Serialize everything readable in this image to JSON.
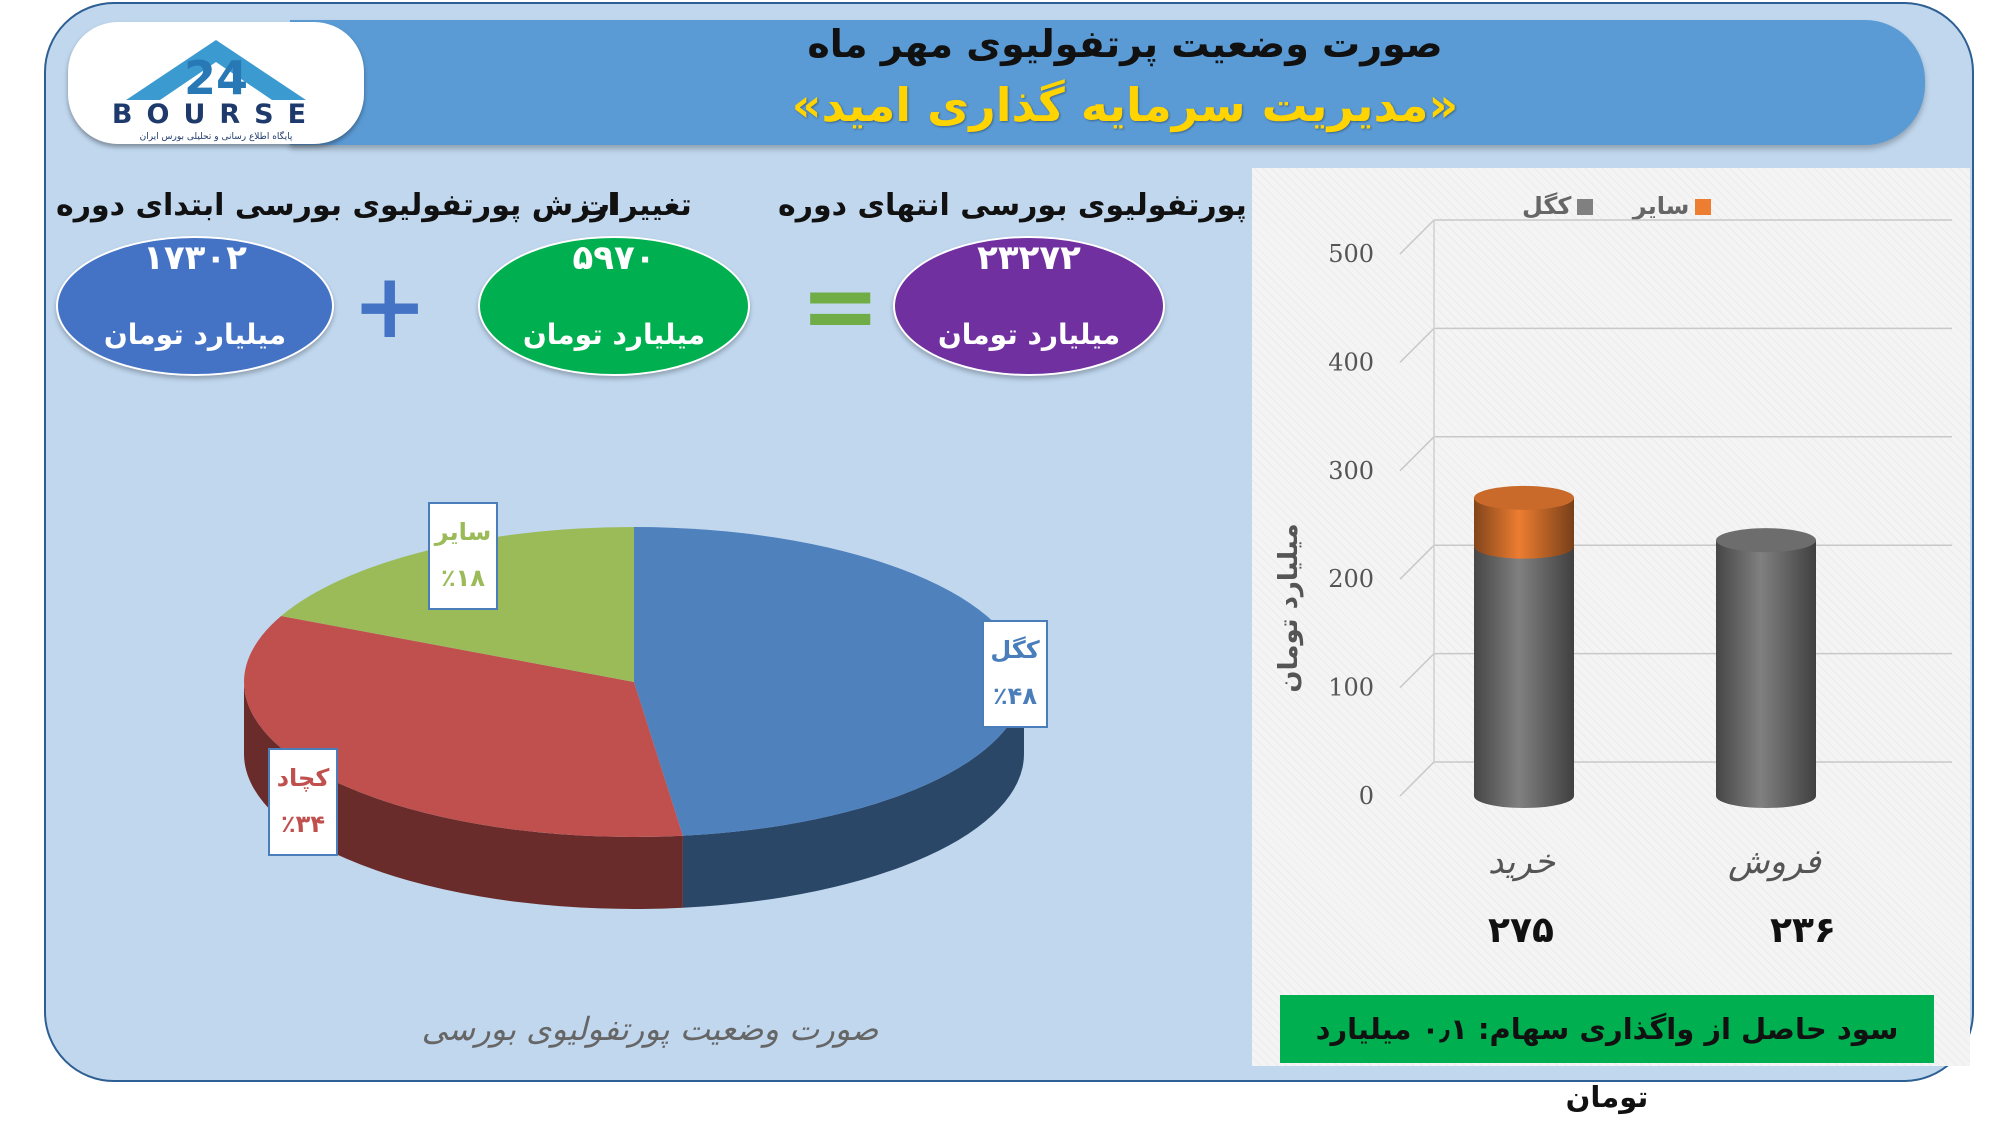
{
  "header": {
    "title_line1": "صورت وضعیت پرتفولیوی مهر ماه",
    "title_line2": "«مدیریت سرمایه گذاری امید»"
  },
  "logo": {
    "wordmark": "BOURSE",
    "caption": "پایگاه اطلاع رسانی و تحلیلی بورس ایران"
  },
  "summary": {
    "start": {
      "label": "ارزش پورتفولیوی بورسی ابتدای دوره",
      "value": "۱۷۳۰۲",
      "unit": "میلیارد تومان",
      "color": "#4472c4"
    },
    "change": {
      "label": "تغییرات",
      "value": "۵۹۷۰",
      "unit": "میلیارد تومان",
      "color": "#00b050"
    },
    "end": {
      "label": "ارزش پورتفولیوی بورسی انتهای دوره",
      "value": "۲۳۲۷۲",
      "unit": "میلیارد تومان",
      "color": "#7030a0"
    },
    "plus_symbol": "+",
    "equals_symbol": "="
  },
  "profit_note": "سود حاصل از واگذاری سهام: ۰٫۱ میلیارد تومان",
  "chart_data": [
    {
      "type": "pie",
      "caption": "صورت وضعیت پورتفولیوی بورسی",
      "slices": [
        {
          "name": "کگل",
          "label": "٪۴۸",
          "value": 48,
          "color": "#4f81bd"
        },
        {
          "name": "کچاد",
          "label": "٪۳۴",
          "value": 34,
          "color": "#c0504d"
        },
        {
          "name": "سایر",
          "label": "٪۱۸",
          "value": 18,
          "color": "#9bbb59"
        }
      ]
    },
    {
      "type": "bar",
      "stacked": true,
      "ylabel": "میلیارد تومان",
      "ylim": [
        0,
        500
      ],
      "yticks": [
        0,
        100,
        200,
        300,
        400,
        500
      ],
      "categories": [
        "خرید",
        "فروش"
      ],
      "category_totals": [
        "۲۷۵",
        "۲۳۶"
      ],
      "legend": [
        "کگل",
        "سایر"
      ],
      "series": [
        {
          "name": "کگل",
          "values": [
            230,
            236
          ],
          "color": "#808080"
        },
        {
          "name": "سایر",
          "values": [
            45,
            0
          ],
          "color": "#ed7d31"
        }
      ],
      "legend_position": "top",
      "grid": true
    }
  ]
}
